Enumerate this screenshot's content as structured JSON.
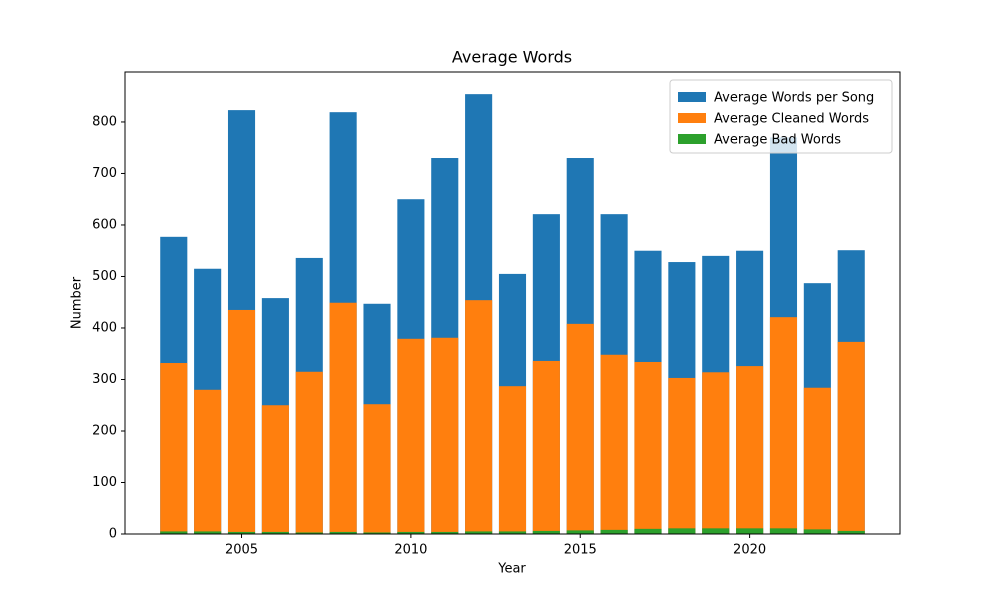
{
  "chart_data": {
    "type": "bar",
    "title": "Average Words",
    "x_label": "Year",
    "y_label": "Number",
    "x": [
      2003,
      2004,
      2005,
      2006,
      2007,
      2008,
      2009,
      2010,
      2011,
      2012,
      2013,
      2014,
      2015,
      2016,
      2017,
      2018,
      2019,
      2020,
      2021,
      2022,
      2023
    ],
    "series": [
      {
        "name": "Average Words per Song",
        "color": "#1f77b4",
        "values": [
          577,
          515,
          823,
          458,
          536,
          819,
          447,
          650,
          730,
          854,
          505,
          621,
          730,
          621,
          550,
          528,
          540,
          550,
          770,
          487,
          551
        ]
      },
      {
        "name": "Average Cleaned Words",
        "color": "#ff7f0e",
        "values": [
          332,
          280,
          435,
          250,
          315,
          449,
          252,
          379,
          381,
          454,
          287,
          336,
          408,
          348,
          334,
          303,
          314,
          326,
          421,
          284,
          373
        ]
      },
      {
        "name": "Average Bad Words",
        "color": "#2ca02c",
        "values": [
          5,
          5,
          4,
          4,
          3,
          4,
          3,
          4,
          4,
          5,
          5,
          6,
          7,
          8,
          10,
          11,
          11,
          11,
          11,
          9,
          6
        ]
      }
    ],
    "xlim": [
      2001.56,
      2024.44
    ],
    "xticks": [
      2005,
      2010,
      2015,
      2020
    ],
    "ylim": [
      0,
      897
    ],
    "yticks": [
      0,
      100,
      200,
      300,
      400,
      500,
      600,
      700,
      800
    ],
    "bar_width": 0.8,
    "legend": "upper right"
  }
}
